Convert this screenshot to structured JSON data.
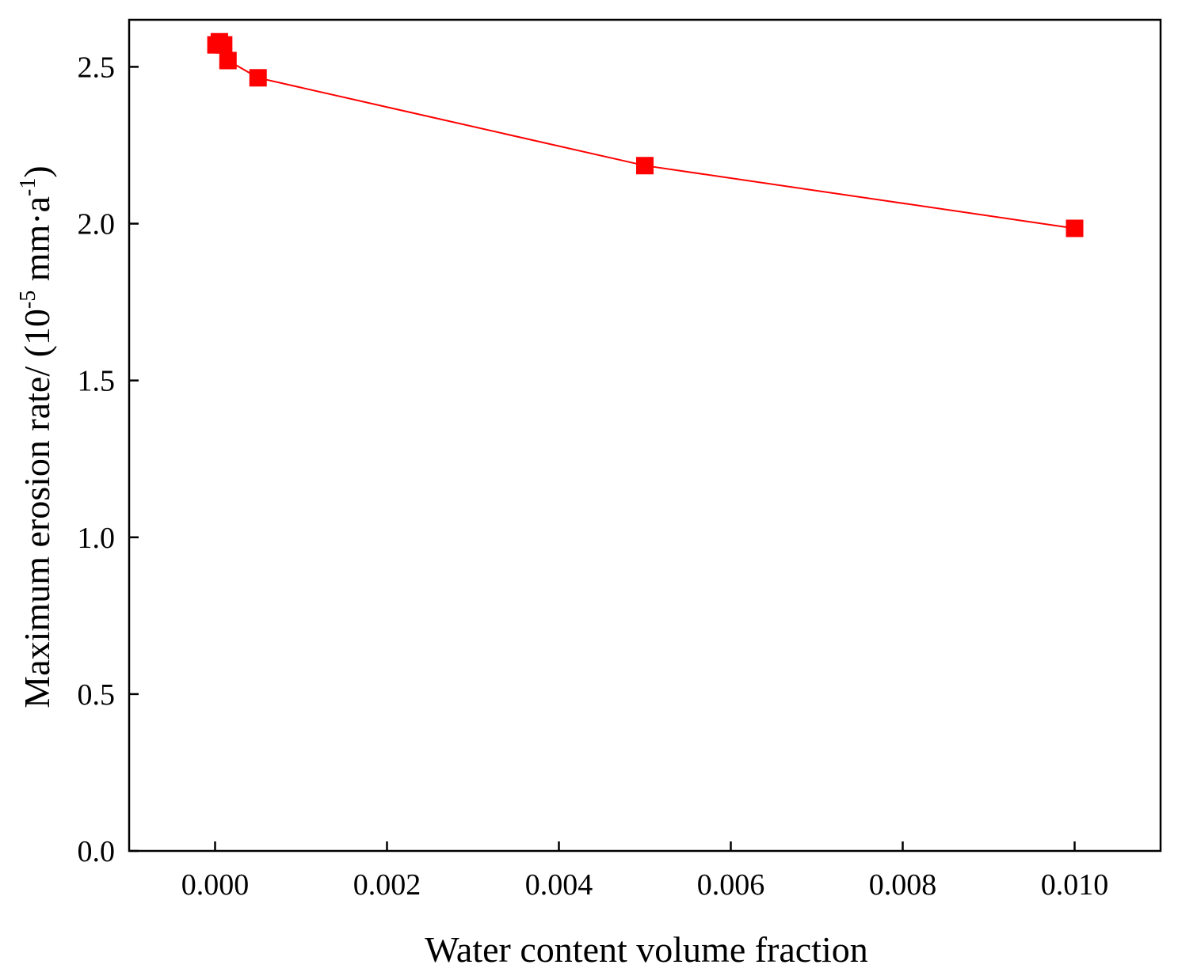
{
  "chart_data": {
    "type": "line",
    "title": "",
    "xlabel": "Water content volume fraction",
    "ylabel": {
      "main": "Maximum erosion rate/ (10",
      "exp1": "-5",
      "mid": " mm·a",
      "exp2": "-1",
      "end": ")"
    },
    "xlim": [
      -0.001,
      0.011
    ],
    "ylim": [
      0.0,
      2.65
    ],
    "xticks": [
      0.0,
      0.002,
      0.004,
      0.006,
      0.008,
      0.01
    ],
    "xtick_labels": [
      "0.000",
      "0.002",
      "0.004",
      "0.006",
      "0.008",
      "0.010"
    ],
    "yticks": [
      0.0,
      0.5,
      1.0,
      1.5,
      2.0,
      2.5
    ],
    "ytick_labels": [
      "0.0",
      "0.5",
      "1.0",
      "1.5",
      "2.0",
      "2.5"
    ],
    "grid": false,
    "legend": "none",
    "series": [
      {
        "name": "Maximum erosion rate",
        "color": "#ff0000",
        "marker": "square",
        "x": [
          1e-05,
          5e-05,
          0.0001,
          0.00015,
          0.0005,
          0.005,
          0.01
        ],
        "y": [
          2.57,
          2.58,
          2.57,
          2.52,
          2.465,
          2.185,
          1.985
        ]
      }
    ]
  }
}
